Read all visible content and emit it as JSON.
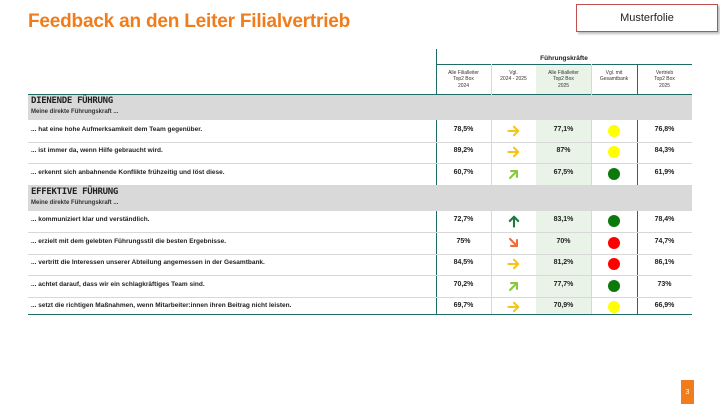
{
  "title": "Feedback an den Leiter Filialvertrieb",
  "badge": "Musterfolie",
  "super_header": "Führungskräfte",
  "columns": [
    "Alle Filialleiter\nTop2 Box\n2024",
    "Vgl.\n2024 - 2025",
    "Alle Filialleiter\nTop2 Box\n2025",
    "Vgl. mit\nGesamtbank",
    "Vertrieb\nTop2 Box\n2025"
  ],
  "groups": [
    {
      "title": "Dienende Führung",
      "subtitle": "Meine direkte Führungskraft ...",
      "rows": [
        {
          "label": "... hat eine hohe Aufmerksamkeit dem Team gegenüber.",
          "v2024": "78,5%",
          "trend": "right",
          "trend_icon": "arrow-right-icon",
          "v2025": "77,1%",
          "status": "yellow",
          "vertrieb": "76,8%"
        },
        {
          "label": "... ist immer da, wenn Hilfe gebraucht wird.",
          "v2024": "89,2%",
          "trend": "right",
          "trend_icon": "arrow-right-icon",
          "v2025": "87%",
          "status": "yellow",
          "vertrieb": "84,3%"
        },
        {
          "label": "... erkennt sich anbahnende Konflikte frühzeitig und löst diese.",
          "v2024": "60,7%",
          "trend": "up-right",
          "trend_icon": "arrow-up-right-icon",
          "v2025": "67,5%",
          "status": "green",
          "vertrieb": "61,9%"
        }
      ]
    },
    {
      "title": "Effektive Führung",
      "subtitle": "Meine direkte Führungskraft ...",
      "rows": [
        {
          "label": "... kommuniziert klar und verständlich.",
          "v2024": "72,7%",
          "trend": "up",
          "trend_icon": "arrow-up-icon",
          "v2025": "83,1%",
          "status": "green",
          "vertrieb": "78,4%"
        },
        {
          "label": "... erzielt mit dem gelebten Führungsstil die besten Ergebnisse.",
          "v2024": "75%",
          "trend": "down-right",
          "trend_icon": "arrow-down-right-icon",
          "v2025": "70%",
          "status": "red",
          "vertrieb": "74,7%"
        },
        {
          "label": "... vertritt die Interessen unserer Abteilung angemessen in der Gesamtbank.",
          "v2024": "84,5%",
          "trend": "right",
          "trend_icon": "arrow-right-icon",
          "v2025": "81,2%",
          "status": "red",
          "vertrieb": "86,1%"
        },
        {
          "label": "... achtet darauf, dass wir ein schlagkräftiges Team sind.",
          "v2024": "70,2%",
          "trend": "up-right",
          "trend_icon": "arrow-up-right-icon",
          "v2025": "77,7%",
          "status": "green",
          "vertrieb": "73%"
        },
        {
          "label": "... setzt die richtigen Maßnahmen, wenn Mitarbeiter:innen ihren Beitrag nicht leisten.",
          "v2024": "69,7%",
          "trend": "right",
          "trend_icon": "arrow-right-icon",
          "v2025": "70,9%",
          "status": "yellow",
          "vertrieb": "66,9%"
        }
      ]
    }
  ],
  "colors": {
    "accent": "#f07c1a",
    "teal_lines": "#1f6b66",
    "yellow": "#ffff00",
    "green": "#0b7a0b",
    "red": "#ff0000",
    "arrow_right": "#f5c518",
    "arrow_up_right": "#8cc63f",
    "arrow_up": "#1e7b3e",
    "arrow_down_right": "#f26b3a"
  },
  "page_number": "3"
}
